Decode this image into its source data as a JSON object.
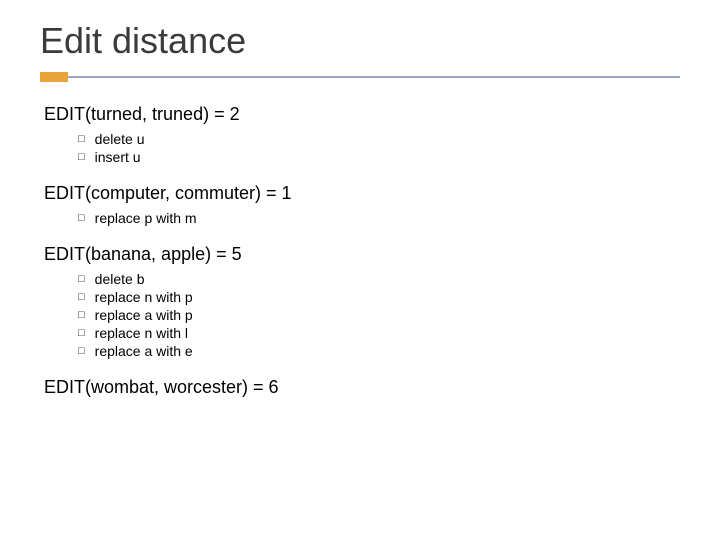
{
  "title": "Edit distance",
  "title_color": "#3b3b3b",
  "title_fontsize": 36,
  "accent_color": "#e8a33d",
  "rule_color": "#9aa7c7",
  "bullet_glyph": "□",
  "body_fontsize": 18,
  "op_fontsize": 14,
  "examples": [
    {
      "heading": "EDIT(turned, truned) = 2",
      "ops": [
        "delete u",
        "insert u"
      ]
    },
    {
      "heading": "EDIT(computer, commuter) = 1",
      "ops": [
        "replace p with m"
      ]
    },
    {
      "heading": "EDIT(banana, apple) = 5",
      "ops": [
        "delete b",
        "replace n with p",
        "replace a with p",
        "replace n with l",
        "replace a with e"
      ]
    },
    {
      "heading": "EDIT(wombat, worcester) = 6",
      "ops": []
    }
  ]
}
